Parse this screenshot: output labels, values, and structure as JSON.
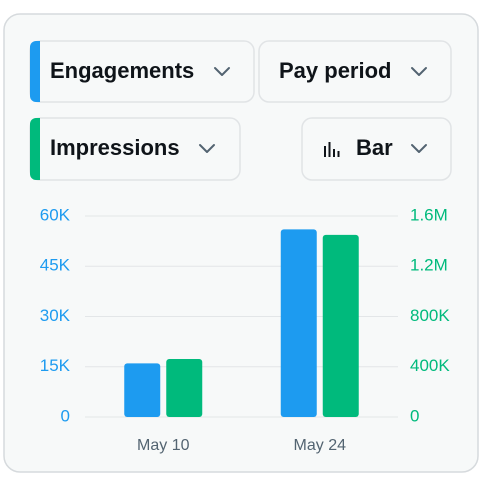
{
  "controls": {
    "period": "Pay period",
    "chart_type_label": "Bar"
  },
  "chart_data": {
    "type": "bar",
    "categories": [
      "May 10",
      "May 24"
    ],
    "series": [
      {
        "name": "Engagements",
        "color": "#1d9bf0",
        "values": [
          16000,
          56000
        ]
      },
      {
        "name": "Impressions",
        "color": "#00ba7c",
        "axis": "y2",
        "values": [
          462000,
          1450000
        ]
      }
    ],
    "ylim": [
      0,
      60000
    ],
    "yticks": [
      0,
      {
        "value": 15000,
        "label": "15K"
      },
      {
        "value": 30000,
        "label": "30K"
      },
      {
        "value": 45000,
        "label": "45K"
      },
      {
        "value": 60000,
        "label": "60K"
      }
    ],
    "y2lim": [
      0,
      1600000
    ],
    "y2ticks": [
      0,
      {
        "value": 400000,
        "label": "400K"
      },
      {
        "value": 800000,
        "label": "800K"
      },
      {
        "value": 1200000,
        "label": "1.2M"
      },
      {
        "value": 1600000,
        "label": "1.6M"
      }
    ],
    "grid": true
  }
}
